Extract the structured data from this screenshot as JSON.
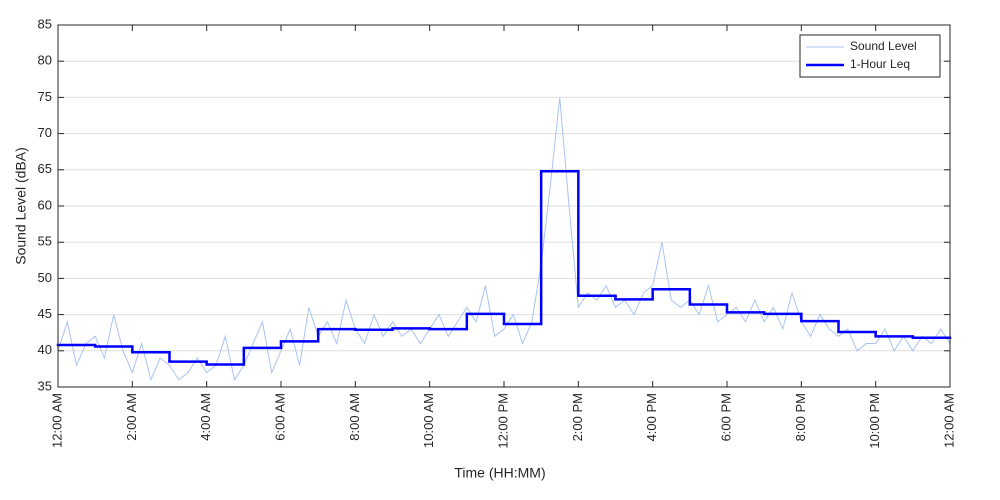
{
  "chart_data": {
    "type": "line",
    "xlabel": "Time (HH:MM)",
    "ylabel": "Sound Level (dBA)",
    "xlim": [
      0,
      24
    ],
    "ylim": [
      35,
      85
    ],
    "xticks": [
      {
        "value": 0,
        "label": "12:00 AM"
      },
      {
        "value": 2,
        "label": "2:00 AM"
      },
      {
        "value": 4,
        "label": "4:00 AM"
      },
      {
        "value": 6,
        "label": "6:00 AM"
      },
      {
        "value": 8,
        "label": "8:00 AM"
      },
      {
        "value": 10,
        "label": "10:00 AM"
      },
      {
        "value": 12,
        "label": "12:00 PM"
      },
      {
        "value": 14,
        "label": "2:00 PM"
      },
      {
        "value": 16,
        "label": "4:00 PM"
      },
      {
        "value": 18,
        "label": "6:00 PM"
      },
      {
        "value": 20,
        "label": "8:00 PM"
      },
      {
        "value": 22,
        "label": "10:00 PM"
      },
      {
        "value": 24,
        "label": "12:00 AM"
      }
    ],
    "yticks": [
      35,
      40,
      45,
      50,
      55,
      60,
      65,
      70,
      75,
      80,
      85
    ],
    "grid": true,
    "legend": "upper right",
    "series": [
      {
        "name": "Sound Level",
        "color": "#a9c3f2",
        "step": false,
        "x": [
          0,
          0.25,
          0.5,
          0.75,
          1,
          1.25,
          1.5,
          1.75,
          2,
          2.25,
          2.5,
          2.75,
          3,
          3.25,
          3.5,
          3.75,
          4,
          4.25,
          4.5,
          4.75,
          5,
          5.25,
          5.5,
          5.75,
          6,
          6.25,
          6.5,
          6.75,
          7,
          7.25,
          7.5,
          7.75,
          8,
          8.25,
          8.5,
          8.75,
          9,
          9.25,
          9.5,
          9.75,
          10,
          10.25,
          10.5,
          10.75,
          11,
          11.25,
          11.5,
          11.75,
          12,
          12.25,
          12.5,
          12.75,
          13,
          13.25,
          13.5,
          13.75,
          14,
          14.25,
          14.5,
          14.75,
          15,
          15.25,
          15.5,
          15.75,
          16,
          16.25,
          16.5,
          16.75,
          17,
          17.25,
          17.5,
          17.75,
          18,
          18.25,
          18.5,
          18.75,
          19,
          19.25,
          19.5,
          19.75,
          20,
          20.25,
          20.5,
          20.75,
          21,
          21.25,
          21.5,
          21.75,
          22,
          22.25,
          22.5,
          22.75,
          23,
          23.25,
          23.5,
          23.75,
          24
        ],
        "values": [
          40,
          44,
          38,
          41,
          42,
          39,
          45,
          40,
          37,
          41,
          36,
          39,
          38,
          36,
          37,
          39,
          37,
          38,
          42,
          36,
          38,
          41,
          44,
          37,
          40,
          43,
          38,
          46,
          42,
          44,
          41,
          47,
          43,
          41,
          45,
          42,
          44,
          42,
          43,
          41,
          43,
          45,
          42,
          44,
          46,
          44,
          49,
          42,
          43,
          45,
          41,
          44,
          52,
          63,
          75,
          60,
          46,
          48,
          47,
          49,
          46,
          47,
          45,
          48,
          49,
          55,
          47,
          46,
          47,
          45,
          49,
          44,
          45,
          46,
          44,
          47,
          44,
          46,
          43,
          48,
          44,
          42,
          45,
          43,
          42,
          43,
          40,
          41,
          41,
          43,
          40,
          42,
          40,
          42,
          41,
          43,
          41
        ]
      },
      {
        "name": "1-Hour Leq",
        "color": "#0000ff",
        "step": true,
        "x": [
          0,
          1,
          2,
          3,
          4,
          5,
          6,
          7,
          8,
          9,
          10,
          11,
          12,
          13,
          14,
          15,
          16,
          17,
          18,
          19,
          20,
          21,
          22,
          23
        ],
        "values": [
          40.8,
          40.6,
          39.8,
          38.5,
          38.1,
          40.4,
          41.3,
          43.0,
          42.9,
          43.1,
          43.0,
          45.1,
          43.7,
          64.8,
          47.6,
          47.1,
          48.5,
          46.4,
          45.3,
          45.1,
          44.1,
          42.6,
          42.0,
          41.8
        ]
      }
    ]
  }
}
